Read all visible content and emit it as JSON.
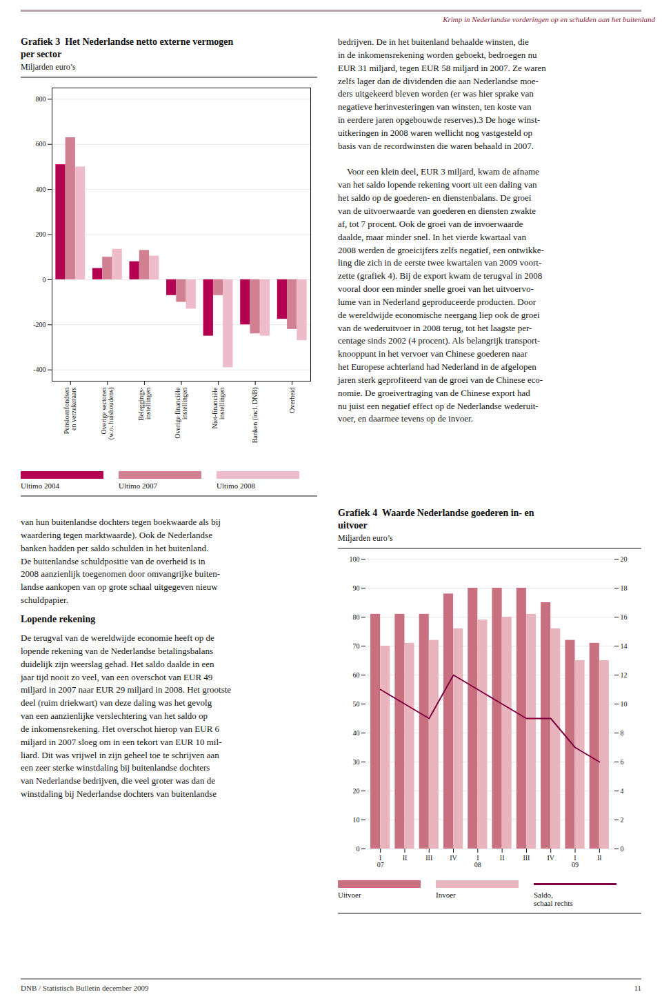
{
  "header": "Krimp in Nederlandse vorderingen op en schulden aan het buitenland",
  "footer": "DNB / Statistisch Bulletin december 2009",
  "footer_right": "11",
  "text_left_top": "van hun buitenlandse dochters tegen boekwaarde als bij\nwaardering tegen marktwaarde). Ook de Nederlandse\nbanken hadden per saldo schulden in het buitenland.\nDe buitenlandse schuldpositie van de overheid is in\n2008 aanzienlijk toegenomen door omvangrijke buiten-\nlandse aankopen van op grote schaal uitgegeven nieuw\nschuldpapier.",
  "text_left_section": "Lopende rekening",
  "text_left_bottom": "De terugval van de wereldwijde economie heeft op de\nlopende rekening van de Nederlandse betalingsbalans\nduidelijk zijn weerslag gehad. Het saldo daalde in een\njaar tijd nooit zo veel, van een overschot van EUR 49\nmiljard in 2007 naar EUR 29 miljard in 2008. Het grootste\ndeel (ruim driekwart) van deze daling was het gevolg\nvan een aanzienlijke verslechtering van het saldo op\nde inkomensrekening. Het overschot hierop van EUR 6\nmiljard in 2007 sloeg om in een tekort van EUR 10 mil-\nliard. Dit was vrijwel in zijn geheel toe te schrijven aan\neen zeer sterke winstdaling bij buitenlandse dochters\nvan Nederlandse bedrijven, die veel groter was dan de\nwinstdaling bij Nederlandse dochters van buitenlandse",
  "text_right_top": "bedrijven. De in het buitenland behaalde winsten, die\nin de inkomensrekening worden geboekt, bedroegen nu\nEUR 31 miljard, tegen EUR 58 miljard in 2007. Ze waren\nzelfs lager dan de dividenden die aan Nederlandse moe-\nders uitgekeerd bleven worden (er was hier sprake van\nnegatieve herinvesteringen van winsten, ten koste van\nin eerdere jaren opgebouwde reserves).3 De hoge winst-\nuitkeringen in 2008 waren wellicht nog vastgesteld op\nbasis van de recordwinsten die waren behaald in 2007.\n\n    Voor een klein deel, EUR 3 miljard, kwam de afname\nvan het saldo lopende rekening voort uit een daling van\nhet saldo op de goederen- en dienstenbalans. De groei\nvan de uitvoerwaarde van goederen en diensten zwakte\naf, tot 7 procent. Ook de groei van de invoerwaarde\ndaalde, maar minder snel. In het vierde kwartaal van\n2008 werden de groeicijfers zelfs negatief, een ontwikke-\nling die zich in de eerste twee kwartalen van 2009 voort-\nzette (grafiek 4). Bij de export kwam de terugval in 2008\nvooral door een minder snelle groei van het uitvoervo-\nlume van in Nederland geproduceerde producten. Door\nde wereldwijde economische neergang liep ook de groei\nvan de wederuitvoer in 2008 terug, tot het laagste per-\ncentage sinds 2002 (4 procent). Als belangrijk transport-\nknooppunt in het vervoer van Chinese goederen naar\nhet Europese achterland had Nederland in de afgelopen\njaren sterk geprofiteerd van de groei van de Chinese eco-\nnomie. De groeivertraging van de Chinese export had\nnu juist een negatief effect op de Nederlandse wederuit-\nvoer, en daarmee tevens op de invoer.",
  "chart_data": [
    {
      "type": "bar",
      "title": "Grafiek 3  Het Nederlandse netto externe vermogen\nper sector",
      "subtitle": "Miljarden euro’s",
      "categories": [
        "Pensioenfondsen\nen verzekeraars",
        "Overige sectoren\n(w.o. huishoudens)",
        "Beleggings-\ninstellingen",
        "Overige financiële\ninstellingen",
        "Niet-financiële\ninstellingen",
        "Banken (incl. DNB)",
        "Overheid"
      ],
      "series": [
        {
          "name": "Ultimo 2004",
          "color": "#b30050",
          "values": [
            510,
            50,
            80,
            -70,
            -250,
            -200,
            -175
          ]
        },
        {
          "name": "Ultimo 2007",
          "color": "#d08090",
          "values": [
            630,
            100,
            130,
            -100,
            -70,
            -240,
            -220
          ]
        },
        {
          "name": "Ultimo 2008",
          "color": "#edbbca",
          "values": [
            500,
            135,
            105,
            -130,
            -390,
            -250,
            -270
          ]
        }
      ],
      "ylim": [
        -450,
        850
      ],
      "yticks": [
        -400,
        -200,
        0,
        200,
        400,
        600,
        800
      ],
      "grid": true,
      "legend": "bottom"
    },
    {
      "type": "bar",
      "title": "Grafiek 4  Waarde Nederlandse goederen in- en\nuitvoer",
      "subtitle": "Miljarden euro’s",
      "categories": [
        "I\n07",
        "II",
        "III",
        "IV",
        "I\n08",
        "II",
        "III",
        "IV",
        "I\n09",
        "II"
      ],
      "series": [
        {
          "name": "Uitvoer",
          "type": "bar",
          "color": "#c87080",
          "values": [
            81,
            81,
            81,
            88,
            90,
            90,
            90,
            85,
            72,
            71
          ]
        },
        {
          "name": "Invoer",
          "type": "bar",
          "color": "#e8b5be",
          "values": [
            70,
            71,
            72,
            76,
            79,
            80,
            81,
            76,
            65,
            65
          ]
        },
        {
          "name": "Saldo,\nschaal rechts",
          "type": "line",
          "axis": "y2",
          "color": "#800040",
          "values": [
            11,
            10,
            9,
            12,
            11,
            10,
            9,
            9,
            7,
            6
          ]
        }
      ],
      "ylim": [
        0,
        100
      ],
      "yticks": [
        0,
        10,
        20,
        30,
        40,
        50,
        60,
        70,
        80,
        90,
        100
      ],
      "y2lim": [
        0,
        20
      ],
      "y2ticks": [
        0,
        2,
        4,
        6,
        8,
        10,
        12,
        14,
        16,
        18,
        20
      ],
      "grid": true,
      "legend": "bottom"
    }
  ]
}
